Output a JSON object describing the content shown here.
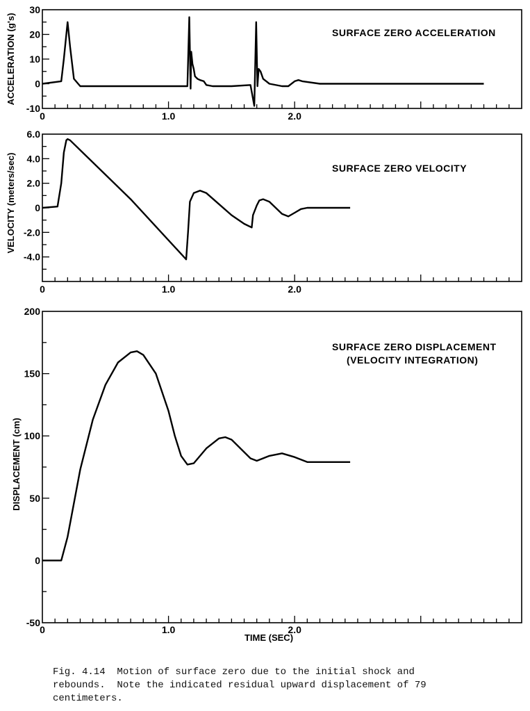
{
  "chart_data": [
    {
      "type": "line",
      "title": "SURFACE ZERO ACCELERATION",
      "xlabel": "",
      "ylabel": "ACCELERATION (g's)",
      "xlim": [
        0,
        3.8
      ],
      "ylim": [
        -10,
        30
      ],
      "xticks": [
        "0",
        "1.0",
        "2.0"
      ],
      "yticks": [
        "30",
        "20",
        "10",
        "0",
        "-10"
      ],
      "x": [
        0,
        0.15,
        0.17,
        0.19,
        0.2,
        0.22,
        0.25,
        0.3,
        0.5,
        1.0,
        1.15,
        1.165,
        1.175,
        1.18,
        1.19,
        1.2,
        1.21,
        1.23,
        1.25,
        1.28,
        1.3,
        1.35,
        1.5,
        1.65,
        1.68,
        1.695,
        1.705,
        1.715,
        1.73,
        1.75,
        1.8,
        1.9,
        1.95,
        2.0,
        2.03,
        2.06,
        2.2,
        2.6,
        3.0,
        3.4,
        3.5
      ],
      "y": [
        0,
        1,
        10,
        20,
        25,
        15,
        2,
        -1,
        -1,
        -1,
        -1,
        27,
        -2,
        13,
        8,
        6,
        3,
        2,
        1.5,
        1,
        -0.5,
        -1,
        -1,
        -0.5,
        -9,
        25,
        -1,
        6,
        5,
        2,
        0,
        -1,
        -1,
        1,
        1.5,
        1,
        0,
        0,
        0,
        0,
        0
      ]
    },
    {
      "type": "line",
      "title": "SURFACE ZERO VELOCITY",
      "xlabel": "",
      "ylabel": "VELOCITY (meters/sec)",
      "xlim": [
        0,
        3.8
      ],
      "ylim": [
        -6,
        6
      ],
      "xticks": [
        "0",
        "1.0",
        "2.0"
      ],
      "yticks": [
        "6.0",
        "4.0",
        "2.0",
        "0",
        "-2.0",
        "-4.0"
      ],
      "x": [
        0,
        0.12,
        0.15,
        0.17,
        0.19,
        0.2,
        0.22,
        0.7,
        1.14,
        1.155,
        1.17,
        1.2,
        1.25,
        1.3,
        1.4,
        1.5,
        1.6,
        1.66,
        1.67,
        1.7,
        1.72,
        1.75,
        1.8,
        1.85,
        1.9,
        1.95,
        2.0,
        2.05,
        2.1,
        2.2,
        2.44
      ],
      "y": [
        0,
        0.1,
        2.0,
        4.5,
        5.5,
        5.6,
        5.5,
        0.7,
        -4.2,
        -2.0,
        0.5,
        1.2,
        1.4,
        1.2,
        0.3,
        -0.6,
        -1.3,
        -1.6,
        -0.6,
        0.2,
        0.6,
        0.7,
        0.5,
        0.0,
        -0.5,
        -0.7,
        -0.4,
        -0.1,
        0.0,
        0.0,
        0.0
      ]
    },
    {
      "type": "line",
      "title": "SURFACE ZERO DISPLACEMENT (VELOCITY INTEGRATION)",
      "xlabel": "TIME (SEC)",
      "ylabel": "DISPLACEMENT (cm)",
      "xlim": [
        0,
        3.8
      ],
      "ylim": [
        -50,
        200
      ],
      "xticks": [
        "0",
        "1.0",
        "2.0"
      ],
      "yticks": [
        "200",
        "150",
        "100",
        "50",
        "0",
        "-50"
      ],
      "x": [
        0,
        0.15,
        0.2,
        0.3,
        0.4,
        0.5,
        0.6,
        0.7,
        0.75,
        0.8,
        0.9,
        1.0,
        1.05,
        1.1,
        1.15,
        1.2,
        1.3,
        1.4,
        1.45,
        1.5,
        1.6,
        1.65,
        1.7,
        1.8,
        1.9,
        2.0,
        2.1,
        2.44
      ],
      "y": [
        0,
        0,
        19,
        73,
        113,
        141,
        159,
        167,
        168,
        165,
        150,
        120,
        100,
        84,
        77,
        78,
        90,
        98,
        99,
        97,
        87,
        82,
        80,
        84,
        86,
        83,
        79,
        79
      ]
    }
  ],
  "title_lines": {
    "displacement_line1": "SURFACE ZERO DISPLACEMENT",
    "displacement_line2": "(VELOCITY INTEGRATION)"
  },
  "caption": {
    "line1": "Fig. 4.14  Motion of surface zero due to the initial shock and",
    "line2": "rebounds.  Note the indicated residual upward displacement of 79",
    "line3": "centimeters."
  }
}
